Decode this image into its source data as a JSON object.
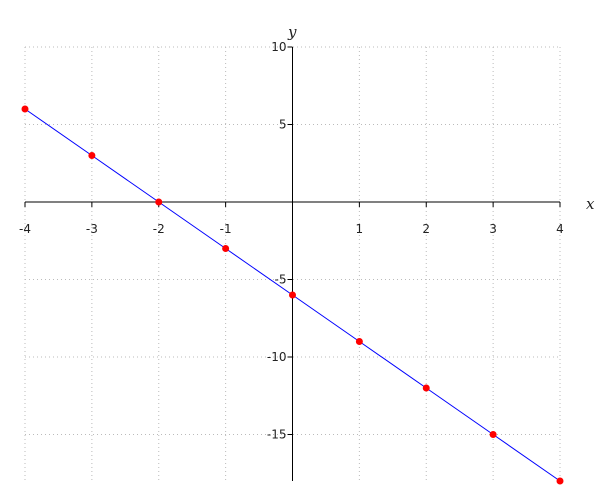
{
  "chart_data": {
    "type": "line",
    "title": "",
    "xlabel": "x",
    "ylabel": "y",
    "xlim": [
      -4,
      4
    ],
    "ylim": [
      -18,
      10
    ],
    "x_ticks": [
      -4,
      -3,
      -2,
      -1,
      1,
      2,
      3,
      4
    ],
    "y_ticks": [
      10,
      5,
      -5,
      -10,
      -15
    ],
    "x_tick_labels": [
      "-4",
      "-3",
      "-2",
      "-1",
      "1",
      "2",
      "3",
      "4"
    ],
    "y_tick_labels": [
      "10",
      "5",
      "-5",
      "-10",
      "-15"
    ],
    "grid": true,
    "series": [
      {
        "x": [
          -4,
          -3,
          -2,
          -1,
          0,
          1,
          2,
          3,
          4
        ],
        "y": [
          6,
          3,
          0,
          -3,
          -6,
          -9,
          -12,
          -15,
          -18
        ],
        "line_color": "#0000ff",
        "marker_color": "#ff0000"
      }
    ]
  }
}
